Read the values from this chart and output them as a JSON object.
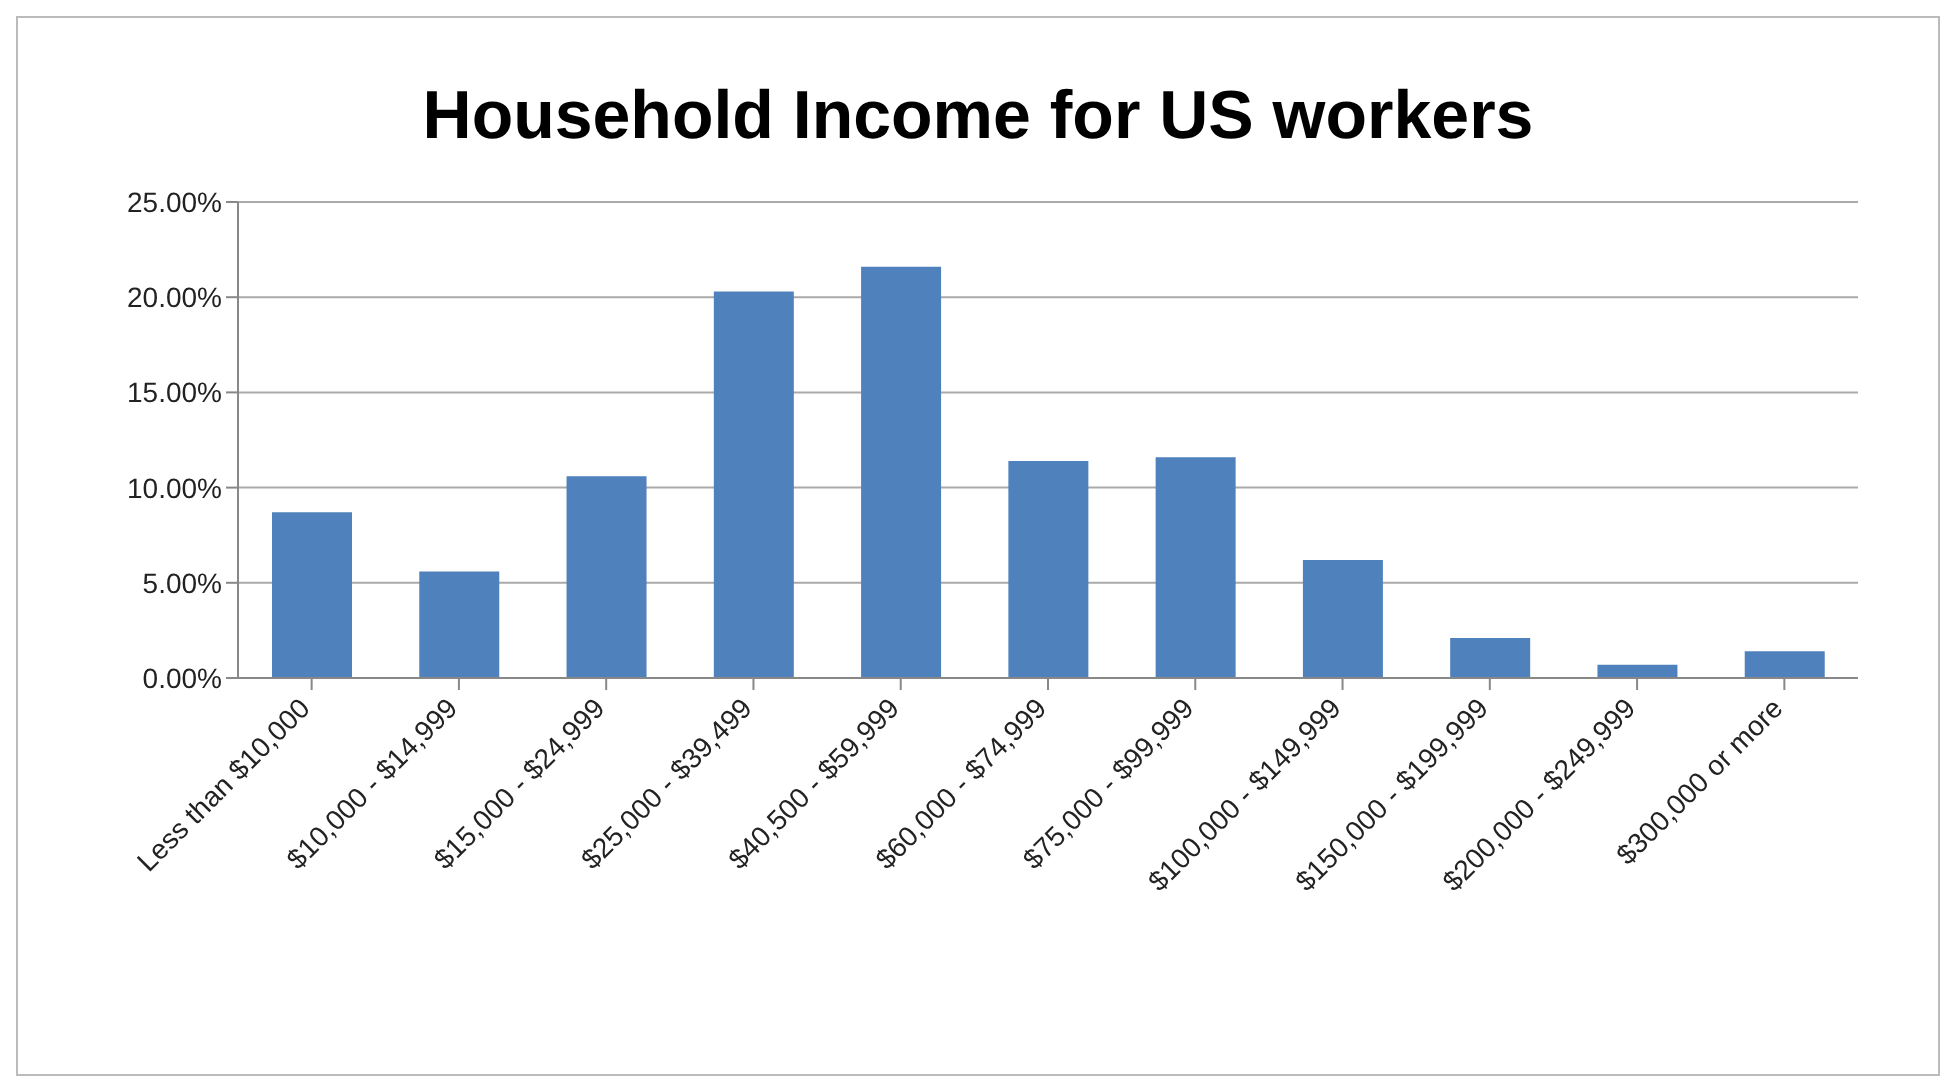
{
  "chart_data": {
    "type": "bar",
    "title": "Household Income for US workers",
    "categories": [
      "Less than $10,000",
      "$10,000 - $14,999",
      "$15,000 - $24,999",
      "$25,000 - $39,499",
      "$40,500 - $59,999",
      "$60,000 - $74,999",
      "$75,000 - $99,999",
      "$100,000 - $149,999",
      "$150,000 - $199,999",
      "$200,000 - $249,999",
      "$300,000 or more"
    ],
    "values": [
      8.7,
      5.6,
      10.6,
      20.3,
      21.6,
      11.4,
      11.6,
      6.2,
      2.1,
      0.7,
      1.4
    ],
    "color": "#4f81bd",
    "ylim": [
      0,
      25
    ],
    "yticks": [
      {
        "value": 0,
        "label": "0.00%"
      },
      {
        "value": 5,
        "label": "5.00%"
      },
      {
        "value": 10,
        "label": "10.00%"
      },
      {
        "value": 15,
        "label": "15.00%"
      },
      {
        "value": 20,
        "label": "20.00%"
      },
      {
        "value": 25,
        "label": "25.00%"
      }
    ],
    "grid": "y",
    "legend": false
  }
}
